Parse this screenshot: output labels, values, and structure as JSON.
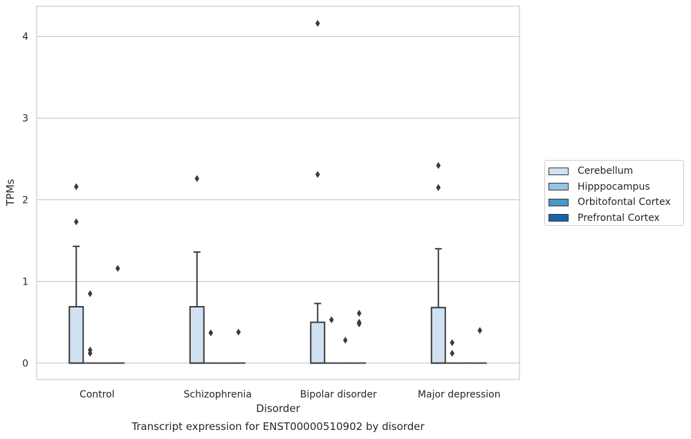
{
  "chart_data": {
    "type": "box",
    "title": "Transcript expression for ENST00000510902 by disorder",
    "xlabel": "Disorder",
    "ylabel": "TPMs",
    "ylim": [
      -0.2,
      4.37
    ],
    "yticks": [
      "0",
      "1",
      "2",
      "3",
      "4"
    ],
    "grid": "horizontal",
    "legend_position": "right",
    "categories": [
      "Control",
      "Schizophrenia",
      "Bipolar disorder",
      "Major depression"
    ],
    "series": [
      {
        "name": "Cerebellum",
        "color": "#d0e1f2",
        "boxes": [
          {
            "q1": 0,
            "median": 0,
            "q3": 0.69,
            "whisker_low": 0,
            "whisker_high": 1.43,
            "outliers": [
              1.73,
              2.16
            ]
          },
          {
            "q1": 0,
            "median": 0,
            "q3": 0.69,
            "whisker_low": 0,
            "whisker_high": 1.36,
            "outliers": [
              2.26
            ]
          },
          {
            "q1": 0,
            "median": 0,
            "q3": 0.5,
            "whisker_low": 0,
            "whisker_high": 0.73,
            "outliers": [
              2.31,
              4.16
            ]
          },
          {
            "q1": 0,
            "median": 0,
            "q3": 0.68,
            "whisker_low": 0,
            "whisker_high": 1.4,
            "outliers": [
              2.15,
              2.42
            ]
          }
        ]
      },
      {
        "name": "Hipppocampus",
        "color": "#94c4df",
        "boxes": [
          {
            "q1": 0,
            "median": 0,
            "q3": 0,
            "whisker_low": 0,
            "whisker_high": 0,
            "outliers": [
              0.12,
              0.16,
              0.85
            ]
          },
          {
            "q1": 0,
            "median": 0,
            "q3": 0,
            "whisker_low": 0,
            "whisker_high": 0,
            "outliers": [
              0.37
            ]
          },
          {
            "q1": 0,
            "median": 0,
            "q3": 0,
            "whisker_low": 0,
            "whisker_high": 0,
            "outliers": [
              0.53
            ]
          },
          {
            "q1": 0,
            "median": 0,
            "q3": 0,
            "whisker_low": 0,
            "whisker_high": 0,
            "outliers": [
              0.12,
              0.25
            ]
          }
        ]
      },
      {
        "name": "Orbitofontal Cortex",
        "color": "#4a98c9",
        "boxes": [
          {
            "q1": 0,
            "median": 0,
            "q3": 0,
            "whisker_low": 0,
            "whisker_high": 0,
            "outliers": []
          },
          {
            "q1": 0,
            "median": 0,
            "q3": 0,
            "whisker_low": 0,
            "whisker_high": 0,
            "outliers": []
          },
          {
            "q1": 0,
            "median": 0,
            "q3": 0,
            "whisker_low": 0,
            "whisker_high": 0,
            "outliers": [
              0.28
            ]
          },
          {
            "q1": 0,
            "median": 0,
            "q3": 0,
            "whisker_low": 0,
            "whisker_high": 0,
            "outliers": []
          }
        ]
      },
      {
        "name": "Prefrontal Cortex",
        "color": "#1764ab",
        "boxes": [
          {
            "q1": 0,
            "median": 0,
            "q3": 0,
            "whisker_low": 0,
            "whisker_high": 0,
            "outliers": [
              1.16
            ]
          },
          {
            "q1": 0,
            "median": 0,
            "q3": 0,
            "whisker_low": 0,
            "whisker_high": 0,
            "outliers": [
              0.38
            ]
          },
          {
            "q1": 0,
            "median": 0,
            "q3": 0,
            "whisker_low": 0,
            "whisker_high": 0,
            "outliers": [
              0.48,
              0.5,
              0.61
            ]
          },
          {
            "q1": 0,
            "median": 0,
            "q3": 0,
            "whisker_low": 0,
            "whisker_high": 0,
            "outliers": [
              0.4
            ]
          }
        ]
      }
    ]
  }
}
